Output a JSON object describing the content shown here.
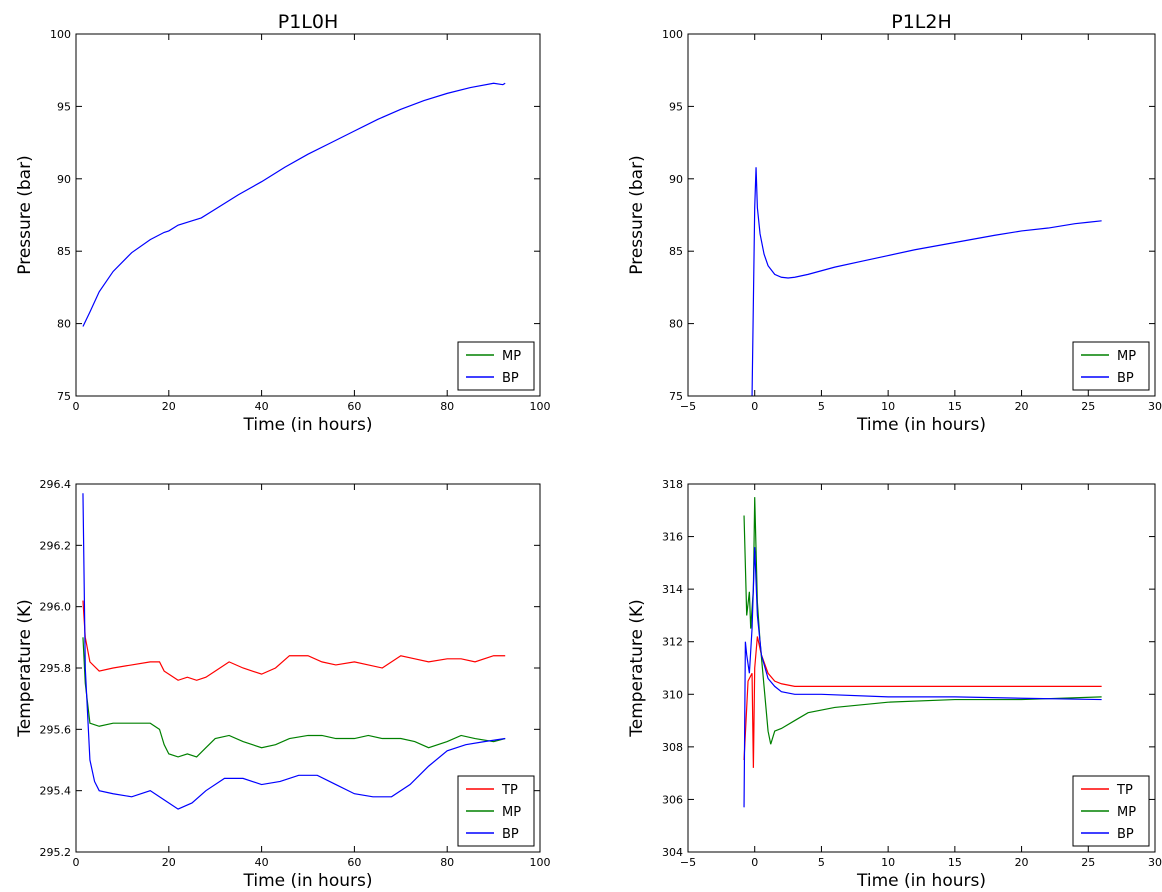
{
  "chart_data": [
    {
      "type": "line",
      "title": "P1L0H",
      "xlabel": "Time (in hours)",
      "ylabel": "Pressure (bar)",
      "xlim": [
        0,
        100
      ],
      "ylim": [
        75,
        100
      ],
      "xticks": [
        0,
        20,
        40,
        60,
        80,
        100
      ],
      "yticks": [
        75,
        80,
        85,
        90,
        95,
        100
      ],
      "grid": false,
      "legend_position": "lower right",
      "series": [
        {
          "name": "MP",
          "color": "#008000",
          "x": [],
          "y": []
        },
        {
          "name": "BP",
          "color": "#0000ff",
          "x": [
            1.5,
            3,
            5,
            8,
            12,
            16,
            19,
            20,
            22,
            25,
            27,
            30,
            35,
            40,
            45,
            50,
            55,
            60,
            65,
            70,
            75,
            80,
            85,
            90,
            92,
            92.5
          ],
          "y": [
            79.8,
            80.8,
            82.2,
            83.6,
            84.9,
            85.8,
            86.3,
            86.4,
            86.8,
            87.1,
            87.3,
            87.9,
            88.9,
            89.8,
            90.8,
            91.7,
            92.5,
            93.3,
            94.1,
            94.8,
            95.4,
            95.9,
            96.3,
            96.6,
            96.5,
            96.6
          ]
        }
      ]
    },
    {
      "type": "line",
      "title": "P1L2H",
      "xlabel": "Time (in hours)",
      "ylabel": "Pressure (bar)",
      "xlim": [
        -5,
        30
      ],
      "ylim": [
        75,
        100
      ],
      "xticks": [
        -5,
        0,
        5,
        10,
        15,
        20,
        25,
        30
      ],
      "xticklabels": [
        "−5",
        "0",
        "5",
        "10",
        "15",
        "20",
        "25",
        "30"
      ],
      "yticks": [
        75,
        80,
        85,
        90,
        95,
        100
      ],
      "grid": false,
      "legend_position": "lower right",
      "series": [
        {
          "name": "MP",
          "color": "#008000",
          "x": [],
          "y": []
        },
        {
          "name": "BP",
          "color": "#0000ff",
          "x": [
            -0.2,
            0,
            0.1,
            0.2,
            0.4,
            0.7,
            1.0,
            1.5,
            2.0,
            2.5,
            3.0,
            4,
            6,
            8,
            10,
            12,
            15,
            18,
            20,
            22,
            24,
            25,
            26
          ],
          "y": [
            75.0,
            88.0,
            90.8,
            88.0,
            86.2,
            84.8,
            84.0,
            83.4,
            83.2,
            83.15,
            83.2,
            83.4,
            83.9,
            84.3,
            84.7,
            85.1,
            85.6,
            86.1,
            86.4,
            86.6,
            86.9,
            87.0,
            87.1
          ]
        }
      ]
    },
    {
      "type": "line",
      "title": "",
      "xlabel": "Time (in hours)",
      "ylabel": "Temperature (K)",
      "xlim": [
        0,
        100
      ],
      "ylim": [
        295.2,
        296.4
      ],
      "xticks": [
        0,
        20,
        40,
        60,
        80,
        100
      ],
      "yticks": [
        295.2,
        295.4,
        295.6,
        295.8,
        296.0,
        296.2,
        296.4
      ],
      "yticklabels": [
        "295.2",
        "295.4",
        "295.6",
        "295.8",
        "296.0",
        "296.2",
        "296.4"
      ],
      "grid": false,
      "legend_position": "lower right",
      "series": [
        {
          "name": "TP",
          "color": "#ff0000",
          "x": [
            1.5,
            2,
            3,
            5,
            8,
            12,
            16,
            18,
            19,
            20,
            22,
            24,
            26,
            28,
            30,
            33,
            36,
            40,
            43,
            46,
            50,
            53,
            56,
            60,
            63,
            66,
            70,
            73,
            76,
            80,
            83,
            86,
            90,
            92.5
          ],
          "y": [
            296.02,
            295.9,
            295.82,
            295.79,
            295.8,
            295.81,
            295.82,
            295.82,
            295.79,
            295.78,
            295.76,
            295.77,
            295.76,
            295.77,
            295.79,
            295.82,
            295.8,
            295.78,
            295.8,
            295.84,
            295.84,
            295.82,
            295.81,
            295.82,
            295.81,
            295.8,
            295.84,
            295.83,
            295.82,
            295.83,
            295.83,
            295.82,
            295.84,
            295.84
          ]
        },
        {
          "name": "MP",
          "color": "#008000",
          "x": [
            1.5,
            2,
            3,
            5,
            8,
            12,
            16,
            18,
            19,
            20,
            22,
            24,
            26,
            28,
            30,
            33,
            36,
            40,
            43,
            46,
            50,
            53,
            56,
            60,
            63,
            66,
            70,
            73,
            76,
            80,
            83,
            86,
            90,
            92.5
          ],
          "y": [
            295.9,
            295.75,
            295.62,
            295.61,
            295.62,
            295.62,
            295.62,
            295.6,
            295.55,
            295.52,
            295.51,
            295.52,
            295.51,
            295.54,
            295.57,
            295.58,
            295.56,
            295.54,
            295.55,
            295.57,
            295.58,
            295.58,
            295.57,
            295.57,
            295.58,
            295.57,
            295.57,
            295.56,
            295.54,
            295.56,
            295.58,
            295.57,
            295.56,
            295.57
          ]
        },
        {
          "name": "BP",
          "color": "#0000ff",
          "x": [
            1.5,
            2,
            3,
            4,
            5,
            8,
            12,
            16,
            19,
            22,
            25,
            28,
            32,
            36,
            40,
            44,
            48,
            52,
            56,
            60,
            64,
            68,
            72,
            76,
            80,
            84,
            88,
            92.5
          ],
          "y": [
            296.37,
            295.8,
            295.5,
            295.43,
            295.4,
            295.39,
            295.38,
            295.4,
            295.37,
            295.34,
            295.36,
            295.4,
            295.44,
            295.44,
            295.42,
            295.43,
            295.45,
            295.45,
            295.42,
            295.39,
            295.38,
            295.38,
            295.42,
            295.48,
            295.53,
            295.55,
            295.56,
            295.57
          ]
        }
      ]
    },
    {
      "type": "line",
      "title": "",
      "xlabel": "Time (in hours)",
      "ylabel": "Temperature (K)",
      "xlim": [
        -5,
        30
      ],
      "ylim": [
        304,
        318
      ],
      "xticks": [
        -5,
        0,
        5,
        10,
        15,
        20,
        25,
        30
      ],
      "xticklabels": [
        "−5",
        "0",
        "5",
        "10",
        "15",
        "20",
        "25",
        "30"
      ],
      "yticks": [
        304,
        306,
        308,
        310,
        312,
        314,
        316,
        318
      ],
      "grid": false,
      "legend_position": "lower right",
      "series": [
        {
          "name": "TP",
          "color": "#ff0000",
          "x": [
            -0.8,
            -0.5,
            -0.2,
            -0.1,
            0,
            0.2,
            0.5,
            1,
            1.5,
            2,
            3,
            5,
            10,
            15,
            20,
            26
          ],
          "y": [
            307.5,
            310.5,
            310.8,
            307.2,
            311.0,
            312.2,
            311.5,
            310.8,
            310.5,
            310.4,
            310.3,
            310.3,
            310.3,
            310.3,
            310.3,
            310.3
          ]
        },
        {
          "name": "MP",
          "color": "#008000",
          "x": [
            -0.8,
            -0.6,
            -0.4,
            -0.3,
            -0.1,
            0,
            0.2,
            0.4,
            0.7,
            1.0,
            1.2,
            1.5,
            2,
            3,
            4,
            6,
            8,
            10,
            15,
            20,
            26
          ],
          "y": [
            316.8,
            313.0,
            313.9,
            312.5,
            314.0,
            317.5,
            313.5,
            312.0,
            310.3,
            308.6,
            308.1,
            308.6,
            308.7,
            309.0,
            309.3,
            309.5,
            309.6,
            309.7,
            309.8,
            309.8,
            309.9
          ]
        },
        {
          "name": "BP",
          "color": "#0000ff",
          "x": [
            -0.8,
            -0.7,
            -0.6,
            -0.4,
            -0.2,
            0,
            0.2,
            0.5,
            1,
            1.5,
            2,
            3,
            5,
            10,
            15,
            20,
            26
          ],
          "y": [
            305.7,
            312.0,
            311.5,
            310.8,
            312.5,
            315.6,
            313.0,
            311.5,
            310.6,
            310.3,
            310.1,
            310.0,
            310.0,
            309.9,
            309.9,
            309.85,
            309.8
          ]
        }
      ]
    }
  ]
}
